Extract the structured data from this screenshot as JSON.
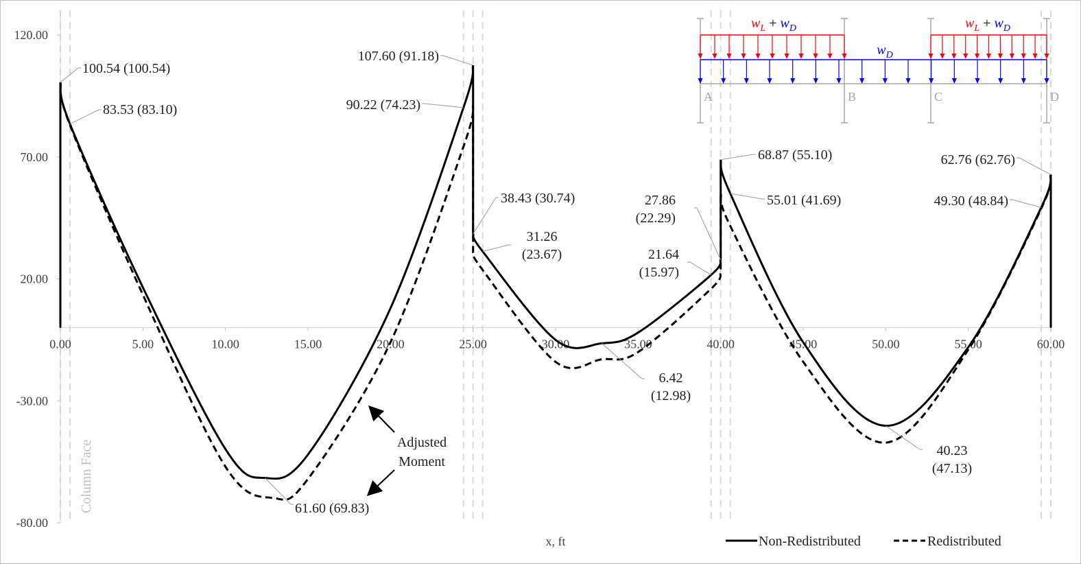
{
  "chart_data": {
    "type": "line",
    "xlabel": "x, ft",
    "xlim": [
      0,
      60
    ],
    "ylim": [
      -80,
      120
    ],
    "y_ticks": [
      "120.00",
      "70.00",
      "20.00",
      "-30.00",
      "-80.00"
    ],
    "x_ticks": [
      "0.00",
      "5.00",
      "10.00",
      "15.00",
      "20.00",
      "25.00",
      "30.00",
      "35.00",
      "40.00",
      "45.00",
      "50.00",
      "55.00",
      "60.00"
    ],
    "legend_position": "bottom-right",
    "series": [
      {
        "name": "Non-Redistributed",
        "style": "solid",
        "color": "#000000",
        "x": [
          0,
          0.583,
          5,
          10,
          12.4,
          15,
          20,
          24.42,
          25,
          25,
          25.583,
          30,
          32.8,
          35,
          39.42,
          40,
          40,
          40.583,
          45,
          50,
          55,
          59.42,
          60
        ],
        "y": [
          100.54,
          83.53,
          16.5,
          -49.8,
          -61.6,
          -52.0,
          8.0,
          90.22,
          107.6,
          38.43,
          31.26,
          -5.0,
          -6.42,
          -2.0,
          21.64,
          27.86,
          68.87,
          55.01,
          -6.0,
          -40.23,
          -8.0,
          49.3,
          62.76
        ]
      },
      {
        "name": "Redistributed",
        "style": "dashed",
        "color": "#000000",
        "x": [
          0,
          0.583,
          5,
          10,
          12.9,
          15,
          20,
          24.42,
          25,
          25,
          25.583,
          30,
          32.8,
          35,
          39.42,
          40,
          40,
          40.583,
          45,
          50,
          55,
          59.42,
          60
        ],
        "y": [
          100.54,
          83.1,
          13.5,
          -57.0,
          -69.83,
          -62.0,
          -6.0,
          74.23,
          91.18,
          30.74,
          23.67,
          -14.0,
          -12.98,
          -10.0,
          15.97,
          22.29,
          55.1,
          41.69,
          -14.0,
          -47.13,
          -9.0,
          48.84,
          62.76
        ]
      }
    ],
    "annotations": [
      {
        "x": 0,
        "y": 100.54,
        "line1": "100.54 (100.54)",
        "line2": ""
      },
      {
        "x": 0.583,
        "y": 83.53,
        "line1": "83.53 (83.10)",
        "line2": ""
      },
      {
        "x": 25,
        "y": 107.6,
        "line1": "107.60 (91.18)",
        "line2": ""
      },
      {
        "x": 24.42,
        "y": 90.22,
        "line1": "90.22 (74.23)",
        "line2": ""
      },
      {
        "x": 25,
        "y": 38.43,
        "line1": "38.43 (30.74)",
        "line2": ""
      },
      {
        "x": 25.583,
        "y": 31.26,
        "line1": "31.26",
        "line2": "(23.67)"
      },
      {
        "x": 40,
        "y": 27.86,
        "line1": "27.86",
        "line2": "(22.29)"
      },
      {
        "x": 39.42,
        "y": 21.64,
        "line1": "21.64",
        "line2": "(15.97)"
      },
      {
        "x": 40,
        "y": 68.87,
        "line1": "68.87 (55.10)",
        "line2": ""
      },
      {
        "x": 40.583,
        "y": 55.01,
        "line1": "55.01 (41.69)",
        "line2": ""
      },
      {
        "x": 60,
        "y": 62.76,
        "line1": "62.76 (62.76)",
        "line2": ""
      },
      {
        "x": 59.42,
        "y": 49.3,
        "line1": "49.30 (48.84)",
        "line2": ""
      },
      {
        "x": 32.8,
        "y": -6.42,
        "line1": "6.42",
        "line2": "(12.98)"
      },
      {
        "x": 12.4,
        "y": -61.6,
        "line1": "61.60 (69.83)",
        "line2": ""
      },
      {
        "x": 50,
        "y": -40.23,
        "line1": "40.23",
        "line2": "(47.13)"
      }
    ],
    "callout": {
      "line1": "Adjusted",
      "line2": "Moment"
    },
    "guide_label": "Column Face",
    "load_diagram": {
      "supports": [
        "A",
        "B",
        "C",
        "D"
      ],
      "live_dead_label": {
        "w": "w",
        "L": "L",
        "plus": " + ",
        "D": "D"
      },
      "dead_label": {
        "w": "w",
        "D": "D"
      },
      "live_color": "#ff0000",
      "dead_color": "#0000ff",
      "support_color": "#a6a6a6"
    }
  }
}
